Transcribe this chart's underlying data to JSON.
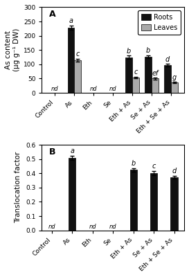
{
  "categories": [
    "Control",
    "As",
    "Eth",
    "Se",
    "Eth + As",
    "Se + As",
    "Eth + Se + As"
  ],
  "panel_A": {
    "title": "A",
    "ylabel": "As content\n(μg g⁻¹ DW)",
    "ylim": [
      0,
      300
    ],
    "yticks": [
      0,
      50,
      100,
      150,
      200,
      250,
      300
    ],
    "roots": [
      0,
      228,
      0,
      0,
      125,
      127,
      97
    ],
    "leaves": [
      0,
      115,
      0,
      0,
      53,
      50,
      36
    ],
    "roots_err": [
      0,
      8,
      0,
      0,
      5,
      5,
      4
    ],
    "leaves_err": [
      0,
      5,
      0,
      0,
      3,
      3,
      2
    ],
    "roots_nd": [
      true,
      false,
      true,
      true,
      false,
      false,
      false
    ],
    "leaves_nd": [
      true,
      false,
      true,
      true,
      false,
      false,
      false
    ],
    "roots_labels": [
      "",
      "a",
      "",
      "",
      "b",
      "b",
      "d"
    ],
    "leaves_labels": [
      "",
      "c",
      "",
      "",
      "c",
      "ef",
      "g"
    ]
  },
  "panel_B": {
    "title": "B",
    "ylabel": "Translocation factor",
    "ylim": [
      0.0,
      0.6
    ],
    "yticks": [
      0.0,
      0.1,
      0.2,
      0.3,
      0.4,
      0.5,
      0.6
    ],
    "values": [
      0,
      0.51,
      0,
      0,
      0.425,
      0.402,
      0.372
    ],
    "errors": [
      0,
      0.015,
      0,
      0,
      0.012,
      0.015,
      0.01
    ],
    "nd": [
      true,
      false,
      true,
      true,
      false,
      false,
      false
    ],
    "labels": [
      "",
      "a",
      "",
      "",
      "b",
      "c",
      "d"
    ]
  },
  "bar_color_roots": "#111111",
  "bar_color_leaves": "#aaaaaa",
  "bar_width": 0.35,
  "nd_fontsize": 6.0,
  "label_fontsize": 7,
  "tick_fontsize": 6.5,
  "axis_label_fontsize": 7.5,
  "legend_fontsize": 7,
  "background_color": "#ffffff"
}
